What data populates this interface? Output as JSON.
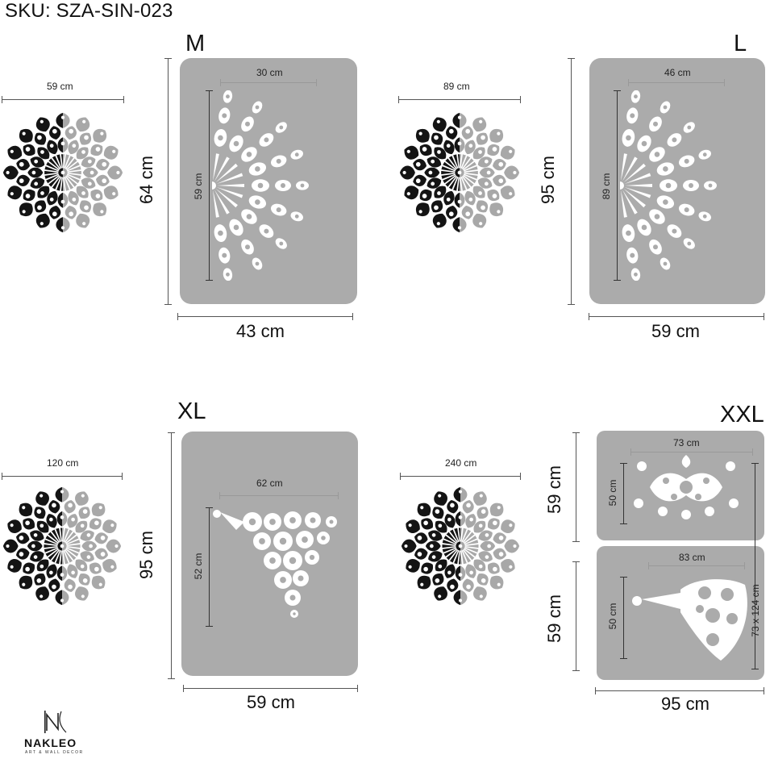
{
  "sku": "SKU: SZA-SIN-023",
  "sizes": {
    "m": {
      "label": "M",
      "outer_width": "59 cm",
      "panel_height": "64 cm",
      "panel_width": "43 cm",
      "inner_width": "30 cm",
      "inner_height": "59 cm"
    },
    "l": {
      "label": "L",
      "outer_width": "89 cm",
      "panel_height": "95 cm",
      "panel_width": "59 cm",
      "inner_width": "46 cm",
      "inner_height": "89 cm"
    },
    "xl": {
      "label": "XL",
      "outer_width": "120 cm",
      "panel_height": "95 cm",
      "panel_width": "59 cm",
      "inner_width": "62 cm",
      "inner_height": "52 cm"
    },
    "xxl": {
      "label": "XXL",
      "outer_width": "240 cm",
      "panel_top_height": "59 cm",
      "panel_bottom_height": "59 cm",
      "panel_width": "95 cm",
      "top_inner_width": "73 cm",
      "top_inner_height": "50 cm",
      "bottom_inner_width": "83 cm",
      "bottom_inner_height": "50 cm",
      "total": "73 x 124 cm"
    }
  },
  "logo": {
    "name": "NAKLEO",
    "tagline": "ART & WALL DECOR"
  },
  "colors": {
    "panel": "#ababab",
    "stencil_dark": "#141414",
    "stencil_light": "#a8a8a8"
  }
}
